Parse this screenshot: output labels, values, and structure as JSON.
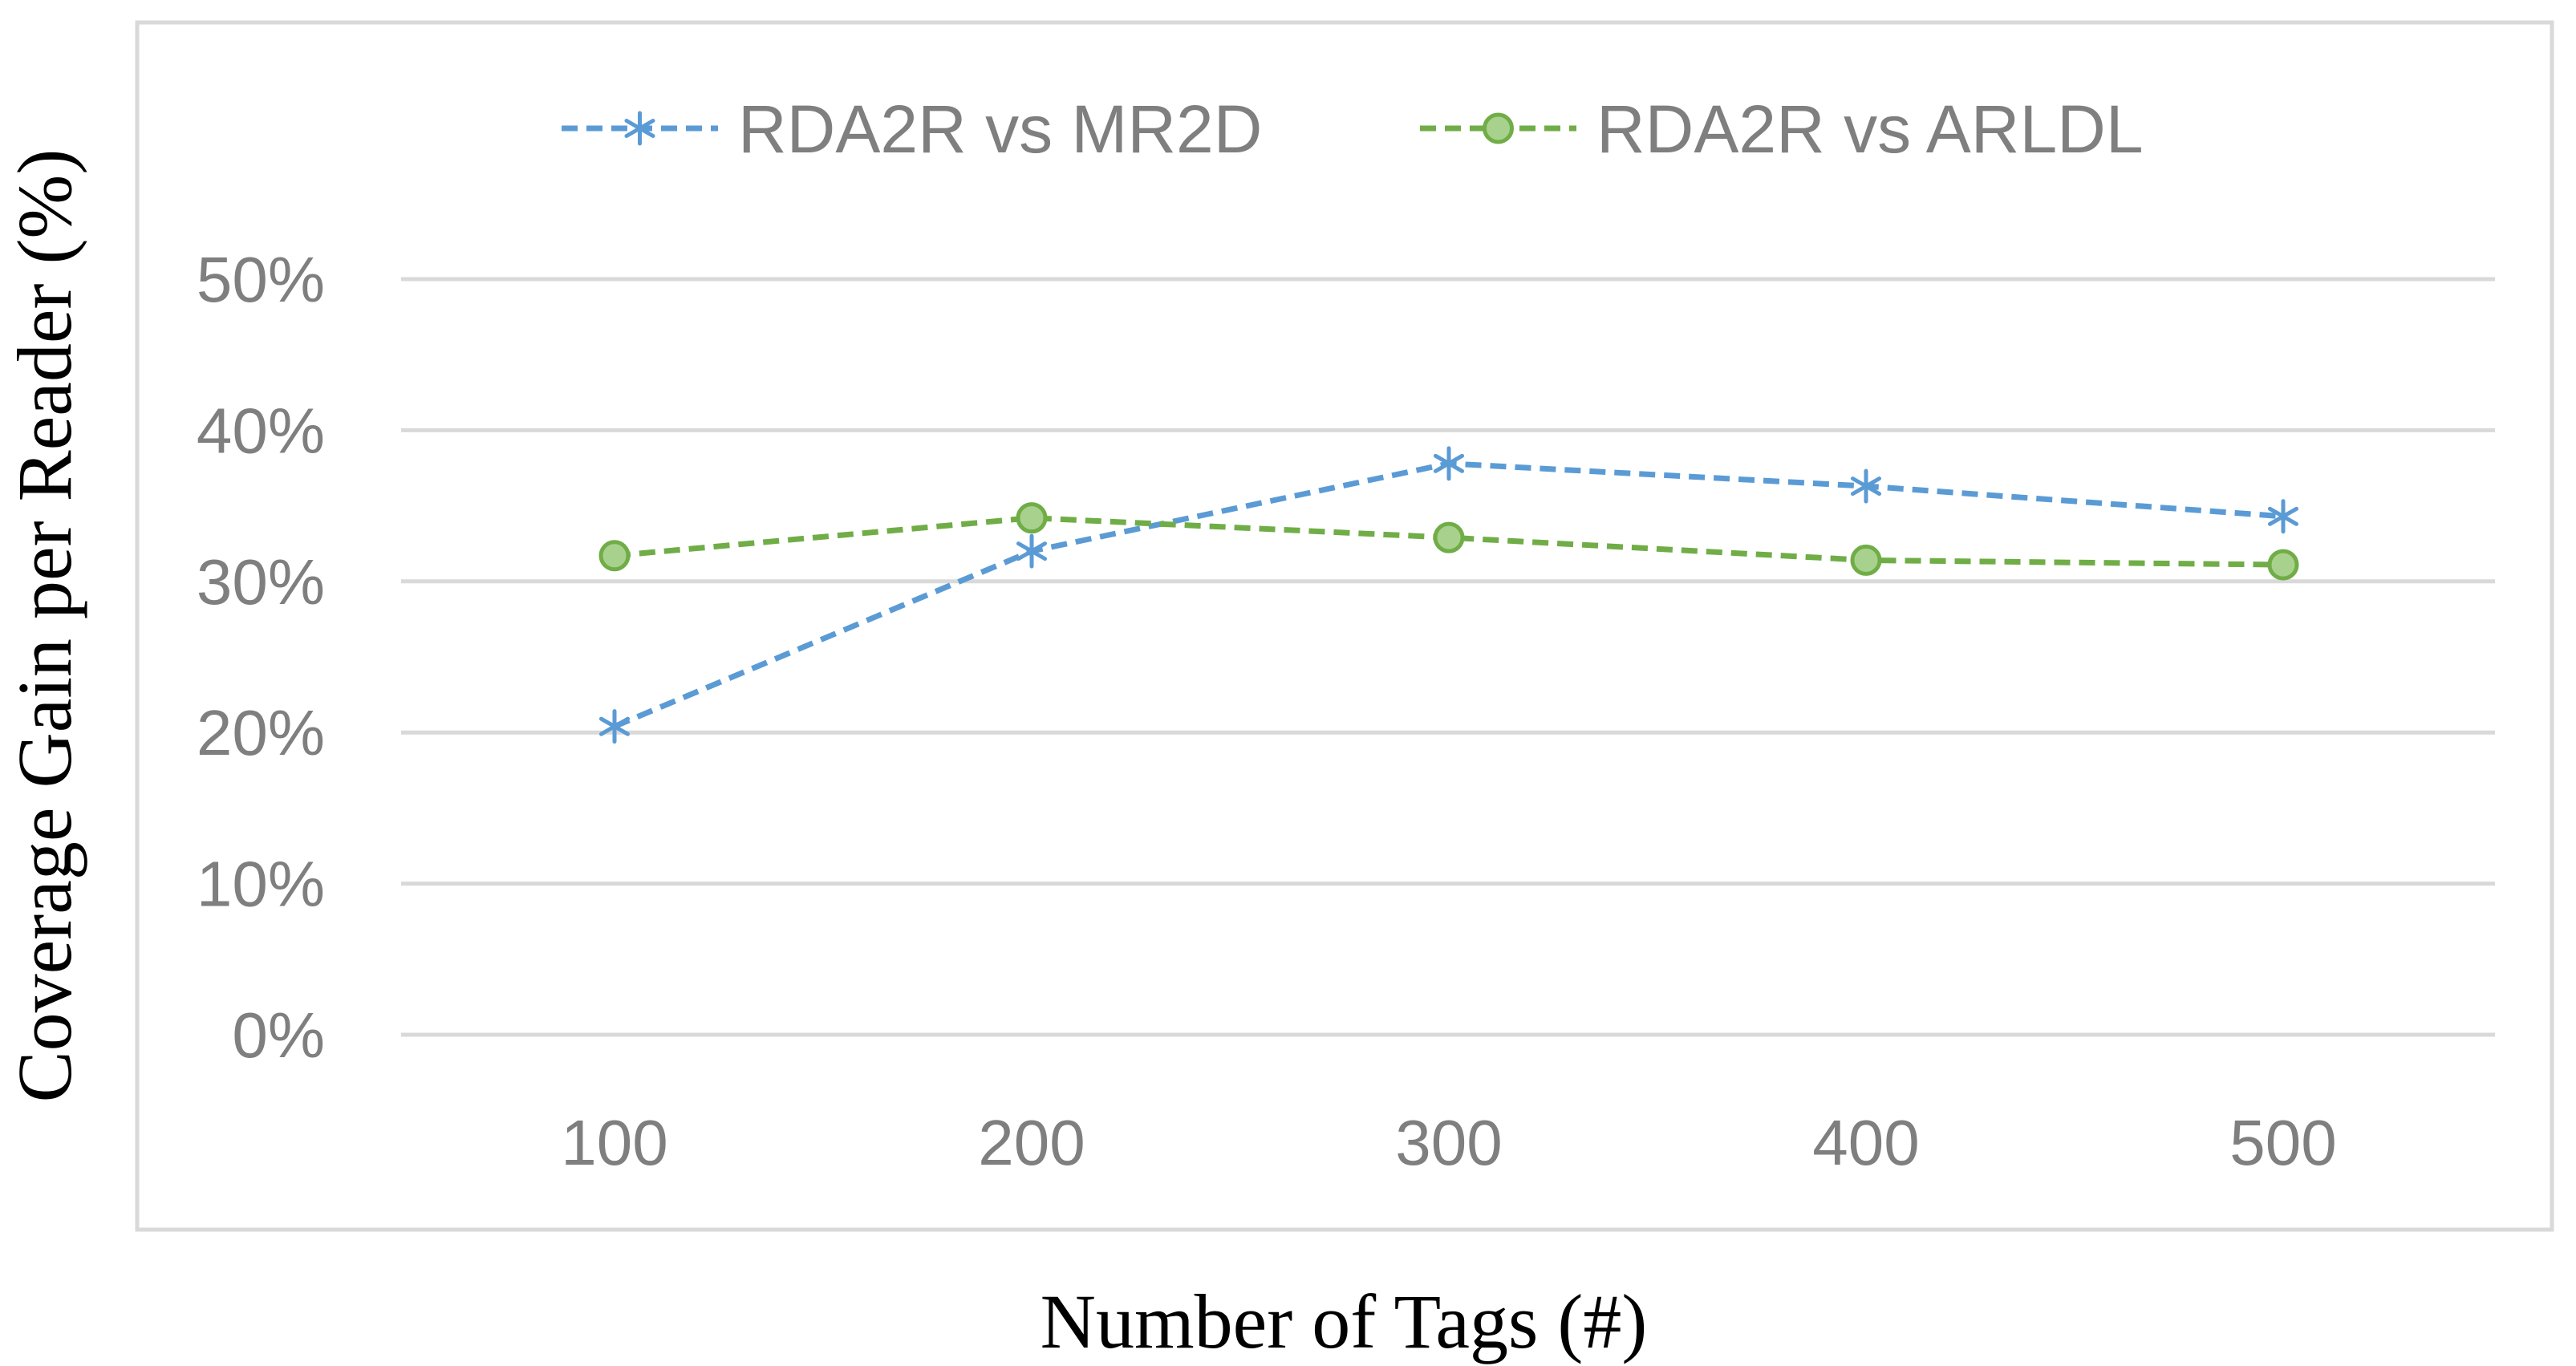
{
  "chart_data": {
    "type": "line",
    "title": "",
    "xlabel": "Number of Tags (#)",
    "ylabel": "Coverage Gain per Reader (%)",
    "categories": [
      "100",
      "200",
      "300",
      "400",
      "500"
    ],
    "ylim": [
      0,
      50
    ],
    "yticks": [
      0,
      10,
      20,
      30,
      40,
      50
    ],
    "ytick_labels": [
      "0%",
      "10%",
      "20%",
      "30%",
      "40%",
      "50%"
    ],
    "grid": true,
    "legend_position": "top",
    "series": [
      {
        "name": "RDA2R vs MR2D",
        "values": [
          20.4,
          32.0,
          37.8,
          36.3,
          34.3
        ],
        "color": "#5b9bd5",
        "marker": "asterisk",
        "line_style": "dashed"
      },
      {
        "name": "RDA2R vs ARLDL",
        "values": [
          31.7,
          34.2,
          32.9,
          31.4,
          31.1
        ],
        "color": "#70ad47",
        "marker_fill": "#a9d18e",
        "marker": "circle",
        "line_style": "dashed"
      }
    ]
  }
}
